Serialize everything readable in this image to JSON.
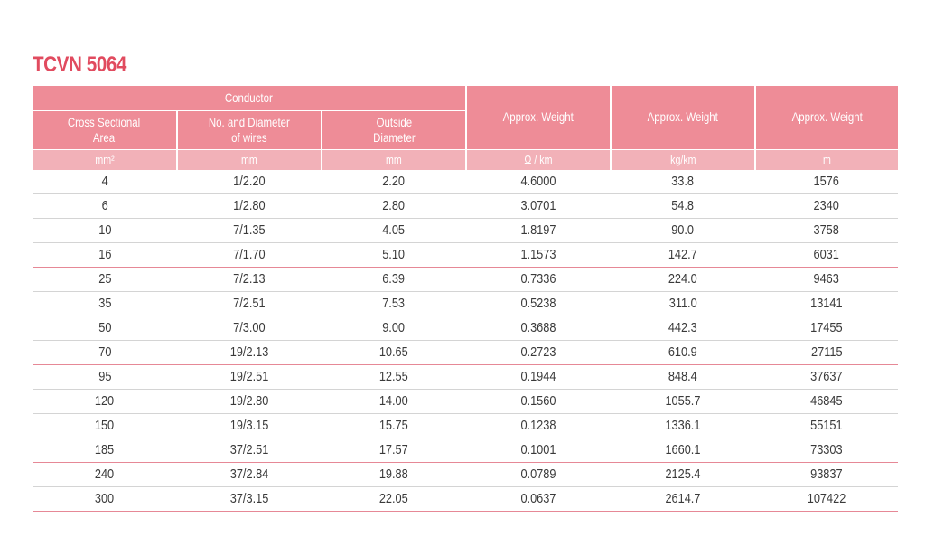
{
  "title": "TCVN 5064",
  "header": {
    "group_label": "Conductor",
    "columns": [
      {
        "label": "Cross Sectional\nArea",
        "unit": "mm²"
      },
      {
        "label": "No. and Diameter\nof wires",
        "unit": "mm"
      },
      {
        "label": "Outside\nDiameter",
        "unit": "mm"
      },
      {
        "label": "Approx. Weight",
        "unit": "Ω / km"
      },
      {
        "label": "Approx. Weight",
        "unit": "kg/km"
      },
      {
        "label": "Approx. Weight",
        "unit": "m"
      }
    ]
  },
  "rows": [
    [
      "4",
      "1/2.20",
      "2.20",
      "4.6000",
      "33.8",
      "1576"
    ],
    [
      "6",
      "1/2.80",
      "2.80",
      "3.0701",
      "54.8",
      "2340"
    ],
    [
      "10",
      "7/1.35",
      "4.05",
      "1.8197",
      "90.0",
      "3758"
    ],
    [
      "16",
      "7/1.70",
      "5.10",
      "1.1573",
      "142.7",
      "6031"
    ],
    [
      "25",
      "7/2.13",
      "6.39",
      "0.7336",
      "224.0",
      "9463"
    ],
    [
      "35",
      "7/2.51",
      "7.53",
      "0.5238",
      "311.0",
      "13141"
    ],
    [
      "50",
      "7/3.00",
      "9.00",
      "0.3688",
      "442.3",
      "17455"
    ],
    [
      "70",
      "19/2.13",
      "10.65",
      "0.2723",
      "610.9",
      "27115"
    ],
    [
      "95",
      "19/2.51",
      "12.55",
      "0.1944",
      "848.4",
      "37637"
    ],
    [
      "120",
      "19/2.80",
      "14.00",
      "0.1560",
      "1055.7",
      "46845"
    ],
    [
      "150",
      "19/3.15",
      "15.75",
      "0.1238",
      "1336.1",
      "55151"
    ],
    [
      "185",
      "37/2.51",
      "17.57",
      "0.1001",
      "1660.1",
      "73303"
    ],
    [
      "240",
      "37/2.84",
      "19.88",
      "0.0789",
      "2125.4",
      "93837"
    ],
    [
      "300",
      "37/3.15",
      "22.05",
      "0.0637",
      "2614.7",
      "107422"
    ]
  ],
  "colors": {
    "title": "#e14b5f",
    "header_bg": "#ee8c97",
    "unit_bg": "#f2b1b8",
    "row_divider": "#d4d4d4",
    "accent_divider": "#e68896"
  }
}
